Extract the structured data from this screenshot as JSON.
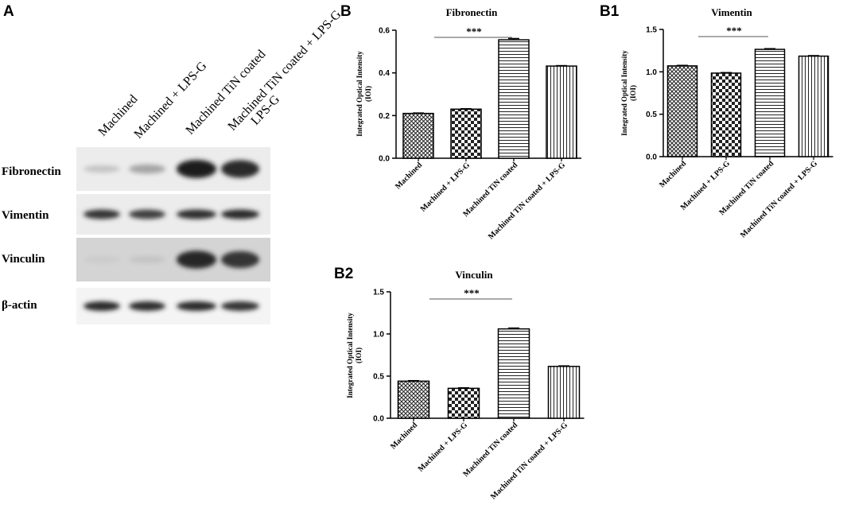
{
  "panels": {
    "A": "A",
    "B": "B",
    "B1": "B1",
    "B2": "B2"
  },
  "blot": {
    "lanes": [
      "Machined",
      "Machined + LPS-G",
      "Machined TiN coated",
      "Machined TiN coated + LPS-G"
    ],
    "rows": [
      "Fibronectin",
      "Vimentin",
      "Vinculin",
      "β-actin"
    ],
    "band_intensity": [
      [
        0.18,
        0.32,
        0.95,
        0.9
      ],
      [
        0.85,
        0.8,
        0.88,
        0.9
      ],
      [
        0.15,
        0.18,
        0.92,
        0.85
      ],
      [
        0.9,
        0.88,
        0.9,
        0.85
      ]
    ]
  },
  "chart_data": [
    {
      "type": "bar",
      "title": "Fibronectin",
      "ylabel": "Integrated Optical Intensity (IOI)",
      "categories": [
        "Machined",
        "Machined + LPS-G",
        "Machined TiN coated",
        "Machined TiN coated + LPS-G"
      ],
      "values": [
        0.21,
        0.23,
        0.555,
        0.432
      ],
      "errors": [
        0.002,
        0.002,
        0.006,
        0.002
      ],
      "ylim": [
        0,
        0.6
      ],
      "yticks": [
        "0.0",
        "0.2",
        "0.4",
        "0.6"
      ],
      "significance": {
        "label": "***",
        "from": 0,
        "to": 2
      },
      "patterns": [
        "crosshatch",
        "checker",
        "horizontal",
        "vertical"
      ]
    },
    {
      "type": "bar",
      "title": "Vimentin",
      "ylabel": "Integrated Optical Intensity (IOI)",
      "categories": [
        "Machined",
        "Machined + LPS-G",
        "Machined TiN coated",
        "Machined TiN coated + LPS-G"
      ],
      "values": [
        1.07,
        0.985,
        1.265,
        1.185
      ],
      "errors": [
        0.006,
        0.006,
        0.008,
        0.006
      ],
      "ylim": [
        0,
        1.5
      ],
      "yticks": [
        "0.0",
        "0.5",
        "1.0",
        "1.5"
      ],
      "significance": {
        "label": "***",
        "from": 0,
        "to": 2
      },
      "patterns": [
        "crosshatch",
        "checker",
        "horizontal",
        "vertical"
      ]
    },
    {
      "type": "bar",
      "title": "Vinculin",
      "ylabel": "Integrated Optical Intensity (IOI)",
      "categories": [
        "Machined",
        "Machined + LPS-G",
        "Machined TiN coated",
        "Machined TiN coated + LPS-G"
      ],
      "values": [
        0.44,
        0.355,
        1.06,
        0.615
      ],
      "errors": [
        0.006,
        0.006,
        0.01,
        0.006
      ],
      "ylim": [
        0,
        1.5
      ],
      "yticks": [
        "0.0",
        "0.5",
        "1.0",
        "1.5"
      ],
      "significance": {
        "label": "***",
        "from": 0,
        "to": 2
      },
      "patterns": [
        "crosshatch",
        "checker",
        "horizontal",
        "vertical"
      ]
    }
  ]
}
